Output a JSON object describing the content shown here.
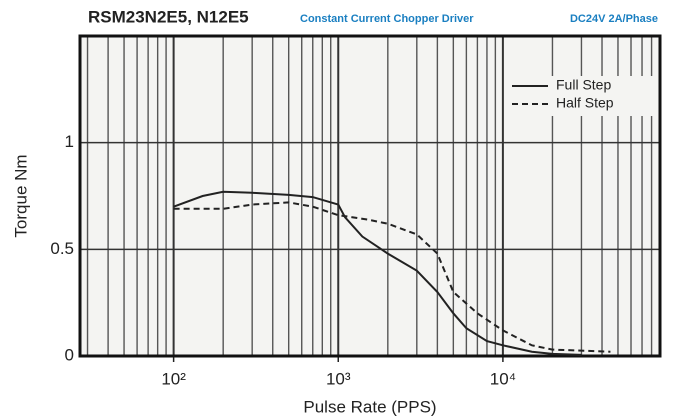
{
  "chart_data": {
    "type": "line",
    "title": "RSM23N2E5, N12E5",
    "subtitle": "Constant Current Chopper Driver",
    "annotation": "DC24V 2A/Phase",
    "xlabel": "Pulse Rate (PPS)",
    "ylabel": "Torque Nm",
    "xscale": "log",
    "xlim": [
      27,
      90000
    ],
    "xticks": [
      {
        "value": 100,
        "label": "10²"
      },
      {
        "value": 1000,
        "label": "10³"
      },
      {
        "value": 10000,
        "label": "10⁴"
      }
    ],
    "ylim": [
      0,
      1.5
    ],
    "yticks": [
      0,
      0.5,
      1
    ],
    "grid": true,
    "minor_grid": true,
    "legend": "upper right",
    "series": [
      {
        "name": "Full Step",
        "color": "#222222",
        "style": "solid",
        "x": [
          100,
          150,
          200,
          300,
          500,
          700,
          1000,
          1100,
          1400,
          2000,
          3000,
          4000,
          5000,
          6000,
          8000,
          10000,
          15000,
          20000,
          30000
        ],
        "values": [
          0.7,
          0.75,
          0.77,
          0.765,
          0.755,
          0.745,
          0.71,
          0.65,
          0.56,
          0.48,
          0.4,
          0.3,
          0.2,
          0.13,
          0.07,
          0.05,
          0.02,
          0.01,
          0.005
        ]
      },
      {
        "name": "Half Step",
        "color": "#222222",
        "style": "dashed",
        "x": [
          100,
          200,
          300,
          500,
          700,
          1000,
          1500,
          2000,
          3000,
          4000,
          5000,
          7000,
          10000,
          15000,
          20000,
          30000,
          45000
        ],
        "values": [
          0.69,
          0.69,
          0.71,
          0.72,
          0.7,
          0.66,
          0.64,
          0.62,
          0.57,
          0.48,
          0.3,
          0.2,
          0.12,
          0.05,
          0.03,
          0.025,
          0.02
        ]
      }
    ]
  }
}
